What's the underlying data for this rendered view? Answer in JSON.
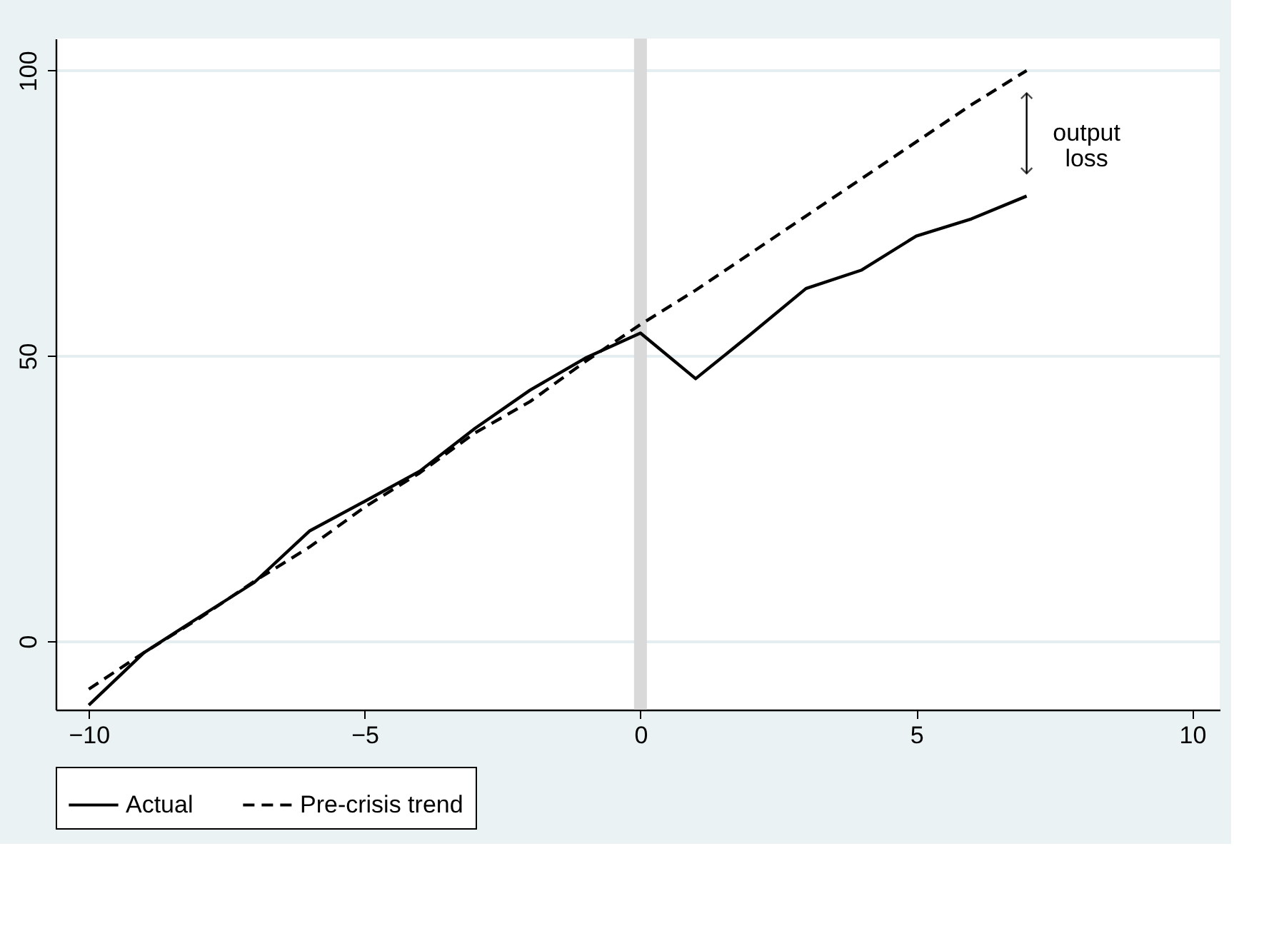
{
  "chart_data": {
    "type": "line",
    "x": [
      -10,
      -9,
      -8,
      -7,
      -6,
      -5,
      -4,
      -3,
      -2,
      -1,
      0,
      1,
      2,
      3,
      4,
      5,
      6,
      7
    ],
    "series": [
      {
        "name": "Actual",
        "color": "#000000",
        "line_style": "solid",
        "values": [
          -11.2,
          -2,
          4.2,
          10.3,
          19.3,
          24.5,
          29.8,
          37.3,
          44,
          49.6,
          54,
          46,
          53.8,
          61.8,
          65,
          71,
          74,
          78
        ]
      },
      {
        "name": "Pre-crisis trend",
        "color": "#000000",
        "line_style": "dashed",
        "values": [
          -8.4,
          -2,
          4,
          10.5,
          16.5,
          23.5,
          29.5,
          36.5,
          42,
          49,
          55.5,
          61.5,
          68,
          74.5,
          81,
          87.5,
          94,
          100
        ]
      }
    ],
    "xlim": [
      -10.6,
      10.5
    ],
    "xticks": [
      -10,
      -5,
      0,
      5,
      10
    ],
    "ylim": [
      -12,
      105.6
    ],
    "yticks": [
      0,
      50,
      100
    ],
    "grid": "y",
    "legend": "bottom",
    "marker": "none",
    "ref_lines": [
      {
        "axis": "x",
        "value": 0,
        "color": "#d9d9d9"
      }
    ],
    "annotations": [
      "output loss"
    ]
  }
}
